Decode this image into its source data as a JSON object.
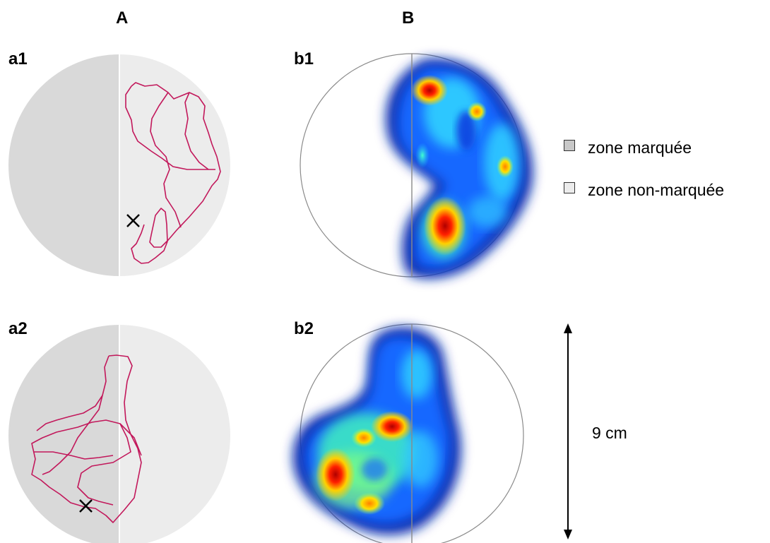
{
  "columns": {
    "a": "A",
    "b": "B"
  },
  "panels": {
    "a1": "a1",
    "b1": "b1",
    "a2": "a2",
    "b2": "b2"
  },
  "legend": {
    "marked": {
      "label": "zone marquée",
      "color": "#c8c8c8"
    },
    "unmarked": {
      "label": "zone non-marquée",
      "color": "#ececec"
    }
  },
  "scale": {
    "label": "9 cm"
  },
  "colors": {
    "arena_marked": "#d9d9d9",
    "arena_unmarked": "#ececec",
    "track": "#c2185b",
    "arena_outline": "#8a8a8a"
  }
}
